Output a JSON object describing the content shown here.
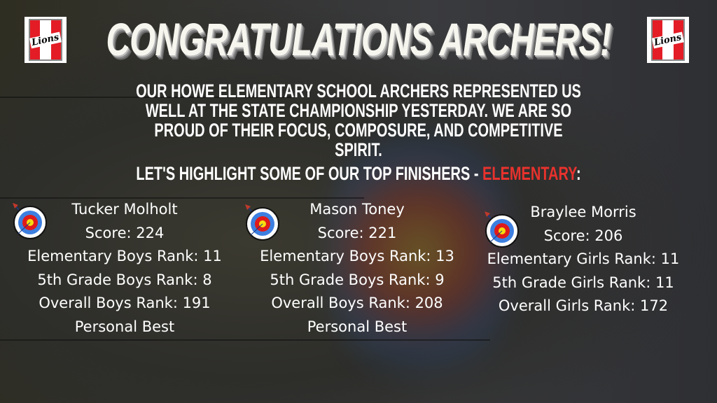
{
  "title": "CONGRATULATIONS ARCHERS!",
  "logos": {
    "left": "Lions",
    "right": "Lions"
  },
  "intro": "OUR HOWE ELEMENTARY SCHOOL ARCHERS REPRESENTED US WELL AT THE STATE CHAMPIONSHIP YESTERDAY. WE ARE SO PROUD OF THEIR FOCUS, COMPOSURE, AND COMPETITIVE SPIRIT.",
  "highlight": {
    "prefix": "LET'S HIGHLIGHT SOME OF OUR TOP FINISHERS - ",
    "emphasis": "ELEMENTARY",
    "suffix": ":",
    "emphasis_color": "#e8322d"
  },
  "archers": [
    {
      "name": "Tucker Molholt",
      "lines": [
        "Score: 224",
        "Elementary Boys Rank: 11",
        "5th Grade Boys Rank: 8",
        "Overall Boys Rank: 191",
        "Personal Best"
      ]
    },
    {
      "name": "Mason Toney",
      "lines": [
        "Score: 221",
        "Elementary Boys Rank: 13",
        "5th Grade Boys Rank: 9",
        "Overall Boys Rank: 208",
        "Personal Best"
      ]
    },
    {
      "name": "Braylee Morris",
      "lines": [
        "Score: 206",
        "Elementary Girls Rank: 11",
        "5th Grade Girls Rank: 11",
        "Overall Girls Rank: 172"
      ]
    }
  ],
  "icons": {
    "target": "archery-target-icon",
    "logo": "lions-logo"
  }
}
